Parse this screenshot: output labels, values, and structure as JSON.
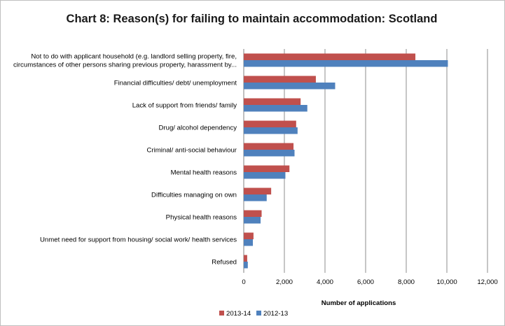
{
  "chart_data": {
    "type": "bar",
    "orientation": "horizontal",
    "title": "Chart 8: Reason(s) for failing to maintain accommodation: Scotland",
    "xlabel": "Number of applications",
    "ylabel": "",
    "xlim": [
      0,
      12000
    ],
    "x_ticks": [
      "0",
      "2,000",
      "4,000",
      "6,000",
      "8,000",
      "10,000",
      "12,000"
    ],
    "grid": "vertical",
    "legend_position": "bottom",
    "categories": [
      [
        "Not to do with applicant household (e.g. landlord selling property, fire,",
        "circumstances of other persons sharing previous property, harassment by..."
      ],
      [
        "Financial difficulties/ debt/ unemployment"
      ],
      [
        "Lack of support from friends/ family"
      ],
      [
        "Drug/ alcohol dependency"
      ],
      [
        "Criminal/ anti-social behaviour"
      ],
      [
        "Mental health reasons"
      ],
      [
        "Difficulties managing on own"
      ],
      [
        "Physical health reasons"
      ],
      [
        "Unmet need for support from housing/ social work/ health services"
      ],
      [
        "Refused"
      ]
    ],
    "series": [
      {
        "name": "2013-14",
        "color": "#c0504d",
        "values": [
          8450,
          3550,
          2800,
          2580,
          2450,
          2250,
          1350,
          880,
          480,
          170
        ]
      },
      {
        "name": "2012-13",
        "color": "#4f81bd",
        "values": [
          10050,
          4500,
          3130,
          2650,
          2500,
          2050,
          1130,
          830,
          450,
          200
        ]
      }
    ]
  }
}
